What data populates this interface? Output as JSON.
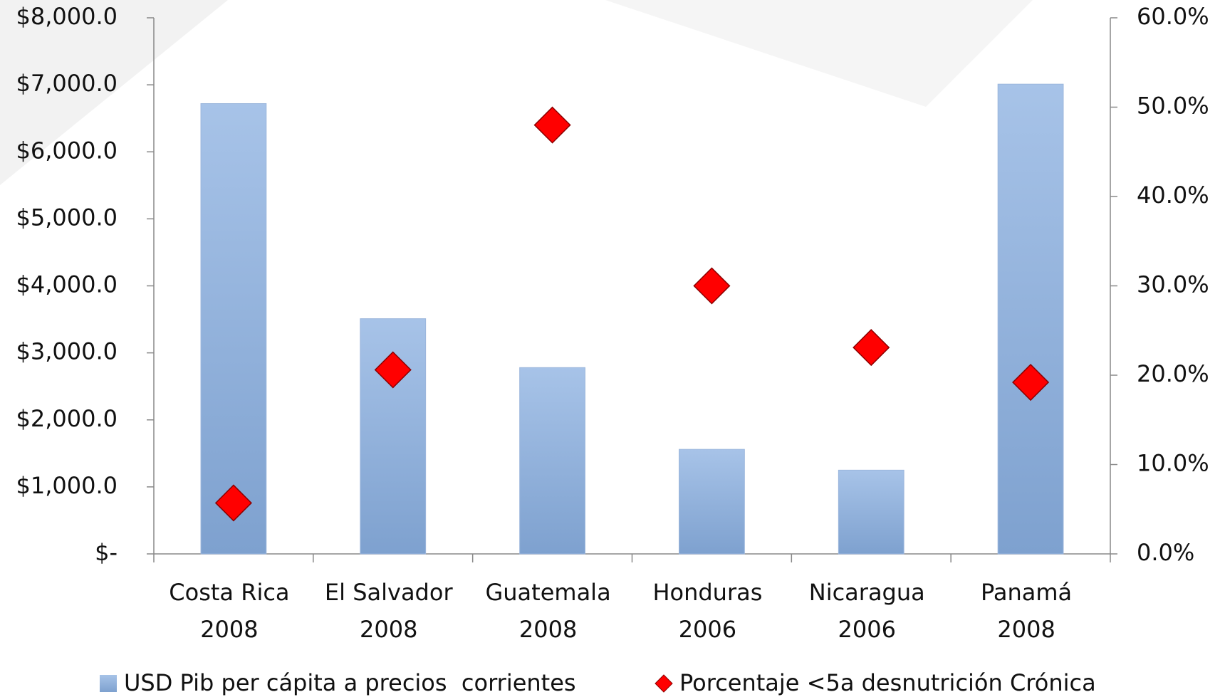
{
  "chart_data": {
    "type": "bar",
    "categories": [
      [
        "Costa Rica",
        "2008"
      ],
      [
        "El Salvador",
        "2008"
      ],
      [
        "Guatemala",
        "2008"
      ],
      [
        "Honduras",
        "2006"
      ],
      [
        "Nicaragua",
        "2006"
      ],
      [
        "Panamá",
        "2008"
      ]
    ],
    "series": [
      {
        "name": "USD Pib per cápita a precios  corrientes",
        "color": "#8eb0dc",
        "type": "bar",
        "values": [
          6720,
          3510,
          2780,
          1560,
          1250,
          7010
        ]
      },
      {
        "name": "Porcentaje <5a desnutrición Crónica",
        "color": "#ff0000",
        "type": "scatter",
        "axis": "y2",
        "values": [
          5.7,
          20.6,
          48.0,
          30.0,
          23.1,
          19.2
        ]
      }
    ],
    "ylim": [
      0,
      8000
    ],
    "yticks": [
      {
        "value": 0,
        "label": "$-"
      },
      {
        "value": 1000,
        "label": "$1,000.0"
      },
      {
        "value": 2000,
        "label": "$2,000.0"
      },
      {
        "value": 3000,
        "label": "$3,000.0"
      },
      {
        "value": 4000,
        "label": "$4,000.0"
      },
      {
        "value": 5000,
        "label": "$5,000.0"
      },
      {
        "value": 6000,
        "label": "$6,000.0"
      },
      {
        "value": 7000,
        "label": "$7,000.0"
      },
      {
        "value": 8000,
        "label": "$8,000.0"
      }
    ],
    "y2lim": [
      0,
      60
    ],
    "y2ticks": [
      {
        "value": 0,
        "label": "0.0%"
      },
      {
        "value": 10,
        "label": "10.0%"
      },
      {
        "value": 20,
        "label": "20.0%"
      },
      {
        "value": 30,
        "label": "30.0%"
      },
      {
        "value": 40,
        "label": "40.0%"
      },
      {
        "value": 50,
        "label": "50.0%"
      },
      {
        "value": 60,
        "label": "60.0%"
      }
    ],
    "grid": false,
    "legend": "bottom"
  }
}
